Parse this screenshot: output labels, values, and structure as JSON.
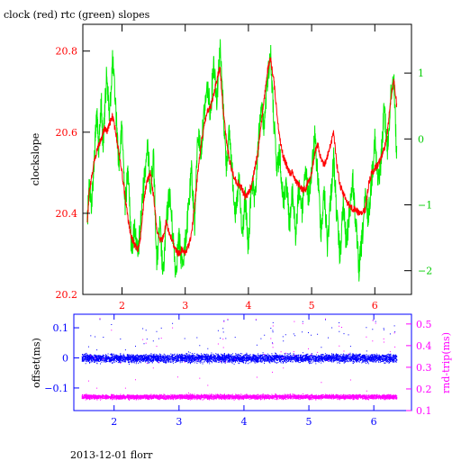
{
  "header": {
    "title": "clock (red) rtc (green) slopes"
  },
  "footer": {
    "caption": "2013-12-01 florr"
  },
  "colors": {
    "clock": "#ff0000",
    "rtc": "#00ee00",
    "offset": "#0000ff",
    "rndtrip": "#ff00ff",
    "frame": "#000000"
  },
  "chart_data": [
    {
      "type": "line",
      "title": "clock (red) rtc (green) slopes",
      "xlabel": "",
      "ylabel": "clockslope",
      "y2label": "",
      "xlim": [
        1.38,
        6.58
      ],
      "ylim": [
        20.2,
        20.866
      ],
      "y2lim": [
        -2.36,
        1.74
      ],
      "xticks": [
        2,
        3,
        4,
        5,
        6
      ],
      "yticks": [
        20.2,
        20.4,
        20.6,
        20.8
      ],
      "y2ticks": [
        -2,
        -1,
        0,
        1
      ],
      "series": [
        {
          "name": "clock",
          "axis": "left",
          "x": [
            1.45,
            1.48,
            1.52,
            1.56,
            1.6,
            1.63,
            1.67,
            1.7,
            1.73,
            1.76,
            1.8,
            1.85,
            1.9,
            1.95,
            2.0,
            2.05,
            2.1,
            2.15,
            2.2,
            2.25,
            2.3,
            2.35,
            2.4,
            2.45,
            2.5,
            2.55,
            2.6,
            2.65,
            2.7,
            2.75,
            2.8,
            2.85,
            2.9,
            2.95,
            3.0,
            3.05,
            3.1,
            3.15,
            3.2,
            3.25,
            3.3,
            3.35,
            3.4,
            3.45,
            3.5,
            3.55,
            3.6,
            3.65,
            3.7,
            3.75,
            3.8,
            3.85,
            3.9,
            3.95,
            4.0,
            4.05,
            4.1,
            4.15,
            4.2,
            4.25,
            4.3,
            4.35,
            4.4,
            4.45,
            4.5,
            4.55,
            4.6,
            4.65,
            4.7,
            4.75,
            4.8,
            4.85,
            4.9,
            4.95,
            5.0,
            5.05,
            5.1,
            5.15,
            5.2,
            5.25,
            5.3,
            5.35,
            5.4,
            5.45,
            5.5,
            5.55,
            5.6,
            5.65,
            5.7,
            5.75,
            5.8,
            5.85,
            5.9,
            5.95,
            6.0,
            6.05,
            6.1,
            6.15,
            6.2,
            6.25,
            6.3,
            6.35
          ],
          "values": [
            20.38,
            20.45,
            20.49,
            20.53,
            20.55,
            20.57,
            20.58,
            20.6,
            20.61,
            20.6,
            20.62,
            20.64,
            20.6,
            20.55,
            20.5,
            20.44,
            20.38,
            20.34,
            20.32,
            20.31,
            20.35,
            20.44,
            20.48,
            20.5,
            20.44,
            20.36,
            20.33,
            20.34,
            20.38,
            20.35,
            20.33,
            20.31,
            20.3,
            20.31,
            20.3,
            20.32,
            20.35,
            20.42,
            20.5,
            20.57,
            20.62,
            20.65,
            20.66,
            20.69,
            20.73,
            20.76,
            20.66,
            20.58,
            20.53,
            20.5,
            20.48,
            20.47,
            20.46,
            20.44,
            20.45,
            20.47,
            20.51,
            20.55,
            20.62,
            20.68,
            20.75,
            20.78,
            20.73,
            20.65,
            20.58,
            20.54,
            20.52,
            20.5,
            20.5,
            20.48,
            20.47,
            20.46,
            20.46,
            20.48,
            20.5,
            20.55,
            20.57,
            20.53,
            20.52,
            20.54,
            20.57,
            20.6,
            20.52,
            20.47,
            20.45,
            20.43,
            20.42,
            20.41,
            20.41,
            20.4,
            20.4,
            20.41,
            20.47,
            20.5,
            20.51,
            20.52,
            20.54,
            20.56,
            20.6,
            20.68,
            20.73,
            20.66
          ]
        },
        {
          "name": "rtc",
          "axis": "right",
          "x": [
            1.45,
            1.48,
            1.52,
            1.56,
            1.6,
            1.63,
            1.67,
            1.7,
            1.73,
            1.76,
            1.8,
            1.85,
            1.9,
            1.95,
            2.0,
            2.05,
            2.1,
            2.15,
            2.2,
            2.25,
            2.3,
            2.35,
            2.4,
            2.45,
            2.5,
            2.55,
            2.6,
            2.65,
            2.7,
            2.75,
            2.8,
            2.85,
            2.9,
            2.95,
            3.0,
            3.05,
            3.1,
            3.15,
            3.2,
            3.25,
            3.3,
            3.35,
            3.4,
            3.45,
            3.5,
            3.55,
            3.6,
            3.65,
            3.7,
            3.75,
            3.8,
            3.85,
            3.9,
            3.95,
            4.0,
            4.05,
            4.1,
            4.15,
            4.2,
            4.25,
            4.3,
            4.35,
            4.4,
            4.45,
            4.5,
            4.55,
            4.6,
            4.65,
            4.7,
            4.75,
            4.8,
            4.85,
            4.9,
            4.95,
            5.0,
            5.05,
            5.1,
            5.15,
            5.2,
            5.25,
            5.3,
            5.35,
            5.4,
            5.45,
            5.5,
            5.55,
            5.6,
            5.65,
            5.7,
            5.75,
            5.8,
            5.85,
            5.9,
            5.95,
            6.0,
            6.05,
            6.1,
            6.15,
            6.2,
            6.25,
            6.3,
            6.35
          ],
          "values": [
            -1.2,
            -0.7,
            -1.0,
            -0.3,
            0.4,
            -0.2,
            0.6,
            -0.1,
            0.5,
            1.0,
            0.3,
            1.2,
            0.5,
            -0.4,
            0.2,
            -1.0,
            -0.4,
            -1.7,
            -1.3,
            -1.8,
            -1.2,
            -0.6,
            -0.1,
            -0.7,
            -0.3,
            -1.9,
            -1.3,
            -2.1,
            -1.3,
            -0.8,
            -1.4,
            -2.0,
            -1.5,
            -1.9,
            -1.6,
            -1.1,
            -0.5,
            -1.3,
            0.1,
            -0.2,
            0.4,
            0.8,
            0.4,
            1.2,
            0.6,
            1.4,
            0.5,
            -0.4,
            0.1,
            -0.6,
            -1.2,
            -0.6,
            -1.5,
            -0.9,
            -1.7,
            -0.6,
            -1.0,
            -0.2,
            0.5,
            0.2,
            0.9,
            1.3,
            0.3,
            -0.5,
            -0.2,
            -1.0,
            -0.6,
            -1.3,
            -0.8,
            -1.5,
            -0.7,
            -1.1,
            -0.4,
            -0.9,
            -0.5,
            0.0,
            -0.6,
            -1.4,
            -0.8,
            -1.6,
            -0.9,
            -0.3,
            -1.2,
            -1.8,
            -1.0,
            -1.6,
            -1.1,
            -0.6,
            -1.3,
            -2.0,
            -1.5,
            -0.9,
            -1.2,
            -0.6,
            0.0,
            -0.7,
            -0.3,
            0.5,
            -0.2,
            0.6,
            1.0,
            -0.4
          ]
        }
      ]
    },
    {
      "type": "scatter",
      "xlabel": "",
      "ylabel": "offset(ms)",
      "y2label": "rnd-trip(ms)",
      "xlim": [
        1.38,
        6.58
      ],
      "ylim": [
        -0.175,
        0.145
      ],
      "y2lim": [
        0.1,
        0.545
      ],
      "xticks": [
        2,
        3,
        4,
        5,
        6
      ],
      "yticks": [
        -0.1,
        0,
        0.1
      ],
      "y2ticks": [
        0.1,
        0.2,
        0.3,
        0.4,
        0.5
      ],
      "series": [
        {
          "name": "offset",
          "axis": "left",
          "x_range": [
            1.5,
            6.35
          ],
          "center": 0.0,
          "spread": 0.02,
          "outlier_max": 0.13
        },
        {
          "name": "rnd-trip",
          "axis": "right",
          "x_range": [
            1.5,
            6.35
          ],
          "center": 0.165,
          "spread": 0.015,
          "outlier_max": 0.53
        }
      ]
    }
  ]
}
